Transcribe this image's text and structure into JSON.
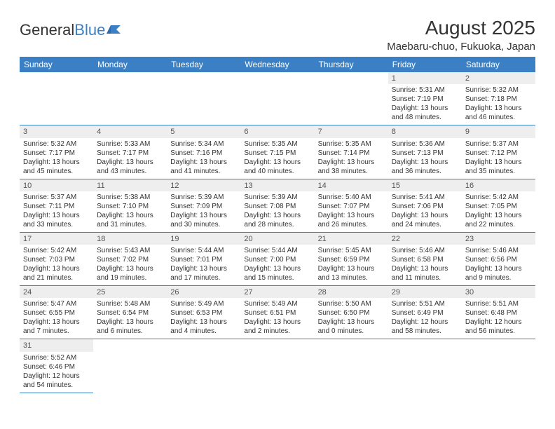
{
  "logo": {
    "text1": "General",
    "text2": "Blue"
  },
  "title": "August 2025",
  "location": "Maebaru-chuo, Fukuoka, Japan",
  "colors": {
    "header_bg": "#3b7fc4",
    "header_text": "#ffffff",
    "row_border": "#3b7fc4",
    "daynum_bg": "#eeeeee",
    "text": "#333333"
  },
  "weekdays": [
    "Sunday",
    "Monday",
    "Tuesday",
    "Wednesday",
    "Thursday",
    "Friday",
    "Saturday"
  ],
  "weeks": [
    [
      null,
      null,
      null,
      null,
      null,
      {
        "n": "1",
        "sr": "Sunrise: 5:31 AM",
        "ss": "Sunset: 7:19 PM",
        "dl": "Daylight: 13 hours and 48 minutes."
      },
      {
        "n": "2",
        "sr": "Sunrise: 5:32 AM",
        "ss": "Sunset: 7:18 PM",
        "dl": "Daylight: 13 hours and 46 minutes."
      }
    ],
    [
      {
        "n": "3",
        "sr": "Sunrise: 5:32 AM",
        "ss": "Sunset: 7:17 PM",
        "dl": "Daylight: 13 hours and 45 minutes."
      },
      {
        "n": "4",
        "sr": "Sunrise: 5:33 AM",
        "ss": "Sunset: 7:17 PM",
        "dl": "Daylight: 13 hours and 43 minutes."
      },
      {
        "n": "5",
        "sr": "Sunrise: 5:34 AM",
        "ss": "Sunset: 7:16 PM",
        "dl": "Daylight: 13 hours and 41 minutes."
      },
      {
        "n": "6",
        "sr": "Sunrise: 5:35 AM",
        "ss": "Sunset: 7:15 PM",
        "dl": "Daylight: 13 hours and 40 minutes."
      },
      {
        "n": "7",
        "sr": "Sunrise: 5:35 AM",
        "ss": "Sunset: 7:14 PM",
        "dl": "Daylight: 13 hours and 38 minutes."
      },
      {
        "n": "8",
        "sr": "Sunrise: 5:36 AM",
        "ss": "Sunset: 7:13 PM",
        "dl": "Daylight: 13 hours and 36 minutes."
      },
      {
        "n": "9",
        "sr": "Sunrise: 5:37 AM",
        "ss": "Sunset: 7:12 PM",
        "dl": "Daylight: 13 hours and 35 minutes."
      }
    ],
    [
      {
        "n": "10",
        "sr": "Sunrise: 5:37 AM",
        "ss": "Sunset: 7:11 PM",
        "dl": "Daylight: 13 hours and 33 minutes."
      },
      {
        "n": "11",
        "sr": "Sunrise: 5:38 AM",
        "ss": "Sunset: 7:10 PM",
        "dl": "Daylight: 13 hours and 31 minutes."
      },
      {
        "n": "12",
        "sr": "Sunrise: 5:39 AM",
        "ss": "Sunset: 7:09 PM",
        "dl": "Daylight: 13 hours and 30 minutes."
      },
      {
        "n": "13",
        "sr": "Sunrise: 5:39 AM",
        "ss": "Sunset: 7:08 PM",
        "dl": "Daylight: 13 hours and 28 minutes."
      },
      {
        "n": "14",
        "sr": "Sunrise: 5:40 AM",
        "ss": "Sunset: 7:07 PM",
        "dl": "Daylight: 13 hours and 26 minutes."
      },
      {
        "n": "15",
        "sr": "Sunrise: 5:41 AM",
        "ss": "Sunset: 7:06 PM",
        "dl": "Daylight: 13 hours and 24 minutes."
      },
      {
        "n": "16",
        "sr": "Sunrise: 5:42 AM",
        "ss": "Sunset: 7:05 PM",
        "dl": "Daylight: 13 hours and 22 minutes."
      }
    ],
    [
      {
        "n": "17",
        "sr": "Sunrise: 5:42 AM",
        "ss": "Sunset: 7:03 PM",
        "dl": "Daylight: 13 hours and 21 minutes."
      },
      {
        "n": "18",
        "sr": "Sunrise: 5:43 AM",
        "ss": "Sunset: 7:02 PM",
        "dl": "Daylight: 13 hours and 19 minutes."
      },
      {
        "n": "19",
        "sr": "Sunrise: 5:44 AM",
        "ss": "Sunset: 7:01 PM",
        "dl": "Daylight: 13 hours and 17 minutes."
      },
      {
        "n": "20",
        "sr": "Sunrise: 5:44 AM",
        "ss": "Sunset: 7:00 PM",
        "dl": "Daylight: 13 hours and 15 minutes."
      },
      {
        "n": "21",
        "sr": "Sunrise: 5:45 AM",
        "ss": "Sunset: 6:59 PM",
        "dl": "Daylight: 13 hours and 13 minutes."
      },
      {
        "n": "22",
        "sr": "Sunrise: 5:46 AM",
        "ss": "Sunset: 6:58 PM",
        "dl": "Daylight: 13 hours and 11 minutes."
      },
      {
        "n": "23",
        "sr": "Sunrise: 5:46 AM",
        "ss": "Sunset: 6:56 PM",
        "dl": "Daylight: 13 hours and 9 minutes."
      }
    ],
    [
      {
        "n": "24",
        "sr": "Sunrise: 5:47 AM",
        "ss": "Sunset: 6:55 PM",
        "dl": "Daylight: 13 hours and 7 minutes."
      },
      {
        "n": "25",
        "sr": "Sunrise: 5:48 AM",
        "ss": "Sunset: 6:54 PM",
        "dl": "Daylight: 13 hours and 6 minutes."
      },
      {
        "n": "26",
        "sr": "Sunrise: 5:49 AM",
        "ss": "Sunset: 6:53 PM",
        "dl": "Daylight: 13 hours and 4 minutes."
      },
      {
        "n": "27",
        "sr": "Sunrise: 5:49 AM",
        "ss": "Sunset: 6:51 PM",
        "dl": "Daylight: 13 hours and 2 minutes."
      },
      {
        "n": "28",
        "sr": "Sunrise: 5:50 AM",
        "ss": "Sunset: 6:50 PM",
        "dl": "Daylight: 13 hours and 0 minutes."
      },
      {
        "n": "29",
        "sr": "Sunrise: 5:51 AM",
        "ss": "Sunset: 6:49 PM",
        "dl": "Daylight: 12 hours and 58 minutes."
      },
      {
        "n": "30",
        "sr": "Sunrise: 5:51 AM",
        "ss": "Sunset: 6:48 PM",
        "dl": "Daylight: 12 hours and 56 minutes."
      }
    ],
    [
      {
        "n": "31",
        "sr": "Sunrise: 5:52 AM",
        "ss": "Sunset: 6:46 PM",
        "dl": "Daylight: 12 hours and 54 minutes."
      },
      null,
      null,
      null,
      null,
      null,
      null
    ]
  ]
}
